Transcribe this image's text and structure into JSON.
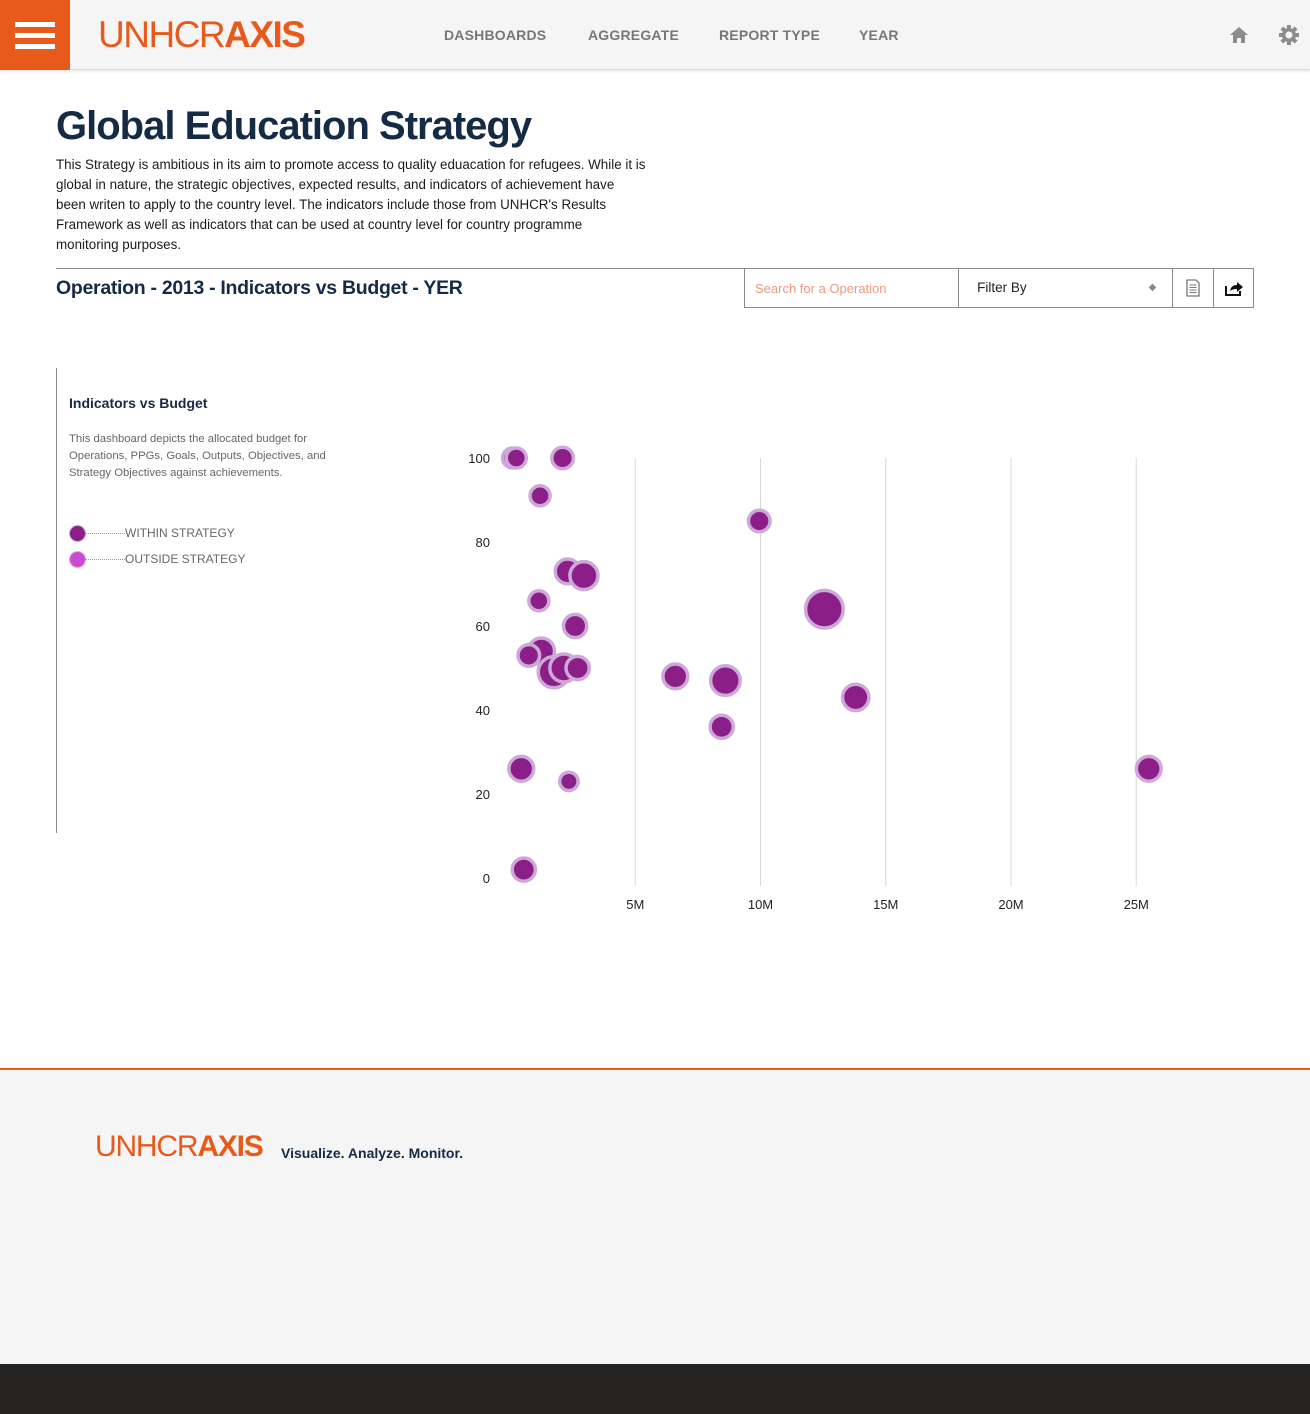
{
  "brand": {
    "prefix": "UNHCR",
    "suffix": "AXIS",
    "color": "#e8591a"
  },
  "nav": {
    "items": [
      {
        "label": "DASHBOARDS"
      },
      {
        "label": "AGGREGATE"
      },
      {
        "label": "REPORT TYPE"
      },
      {
        "label": "YEAR"
      }
    ],
    "icons": [
      "home-icon",
      "gear-icon",
      "menu-icon"
    ]
  },
  "page": {
    "title": "Global Education Strategy",
    "intro": "This Strategy is ambitious in its aim to promote access to quality eduacation for refugees. While it is global in nature, the strategic objectives, expected results, and indicators of achievement have been writen to apply to the country level. The indicators include those from UNHCR's Results Framework as well as indicators that can be used at country level for country programme monitoring purposes."
  },
  "section": {
    "title": "Operation - 2013 - Indicators vs Budget - YER",
    "search_placeholder": "Search for a Operation",
    "filter_label": "Filter By",
    "tool_icons": [
      "document-icon",
      "share-icon"
    ]
  },
  "panel": {
    "title": "Indicators vs Budget",
    "description": "This dashboard depicts the allocated budget for Operations, PPGs, Goals, Outputs, Objectives, and Strategy Objectives against achievements.",
    "legend": [
      {
        "label": "WITHIN STRATEGY",
        "color": "#8b1f87"
      },
      {
        "label": "OUTSIDE STRATEGY",
        "color": "#c84bd0"
      }
    ]
  },
  "chart_data": {
    "type": "scatter",
    "title": "",
    "xlabel": "",
    "ylabel": "",
    "xlim": [
      0,
      28000000
    ],
    "ylim": [
      0,
      100
    ],
    "x_ticks": [
      {
        "value": 5000000,
        "label": "5M"
      },
      {
        "value": 10000000,
        "label": "10M"
      },
      {
        "value": 15000000,
        "label": "15M"
      },
      {
        "value": 20000000,
        "label": "20M"
      },
      {
        "value": 25000000,
        "label": "25M"
      }
    ],
    "y_ticks": [
      {
        "value": 0,
        "label": "0"
      },
      {
        "value": 20,
        "label": "20"
      },
      {
        "value": 40,
        "label": "40"
      },
      {
        "value": 60,
        "label": "60"
      },
      {
        "value": 80,
        "label": "80"
      },
      {
        "value": 100,
        "label": "100"
      }
    ],
    "grid": "vertical",
    "legend_position": "left",
    "colors": {
      "fill": "#8b1f87",
      "halo": "#cfa8da"
    },
    "series": [
      {
        "name": "WITHIN STRATEGY",
        "points": [
          {
            "x": 100000,
            "y": 100,
            "size": 0.5
          },
          {
            "x": 250000,
            "y": 100,
            "size": 0.5
          },
          {
            "x": 2100000,
            "y": 100,
            "size": 0.6
          },
          {
            "x": 1200000,
            "y": 91,
            "size": 0.5
          },
          {
            "x": 9950000,
            "y": 85,
            "size": 0.6
          },
          {
            "x": 2300000,
            "y": 73,
            "size": 0.8
          },
          {
            "x": 2950000,
            "y": 72,
            "size": 1.0
          },
          {
            "x": 1150000,
            "y": 66,
            "size": 0.5
          },
          {
            "x": 12550000,
            "y": 64,
            "size": 1.6
          },
          {
            "x": 2600000,
            "y": 60,
            "size": 0.7
          },
          {
            "x": 1250000,
            "y": 54,
            "size": 0.9
          },
          {
            "x": 750000,
            "y": 53,
            "size": 0.6
          },
          {
            "x": 1750000,
            "y": 49,
            "size": 1.2
          },
          {
            "x": 2150000,
            "y": 50,
            "size": 1.0
          },
          {
            "x": 2700000,
            "y": 50,
            "size": 0.7
          },
          {
            "x": 6600000,
            "y": 48,
            "size": 0.8
          },
          {
            "x": 8600000,
            "y": 47,
            "size": 1.1
          },
          {
            "x": 13800000,
            "y": 43,
            "size": 0.9
          },
          {
            "x": 8450000,
            "y": 36,
            "size": 0.7
          },
          {
            "x": 450000,
            "y": 26,
            "size": 0.8
          },
          {
            "x": 2350000,
            "y": 23,
            "size": 0.4
          },
          {
            "x": 25500000,
            "y": 26,
            "size": 0.8
          },
          {
            "x": 550000,
            "y": 2,
            "size": 0.7
          }
        ]
      }
    ]
  },
  "footer": {
    "brand_prefix": "UNHCR",
    "brand_suffix": "AXIS",
    "tagline": "Visualize. Analyze. Monitor."
  }
}
